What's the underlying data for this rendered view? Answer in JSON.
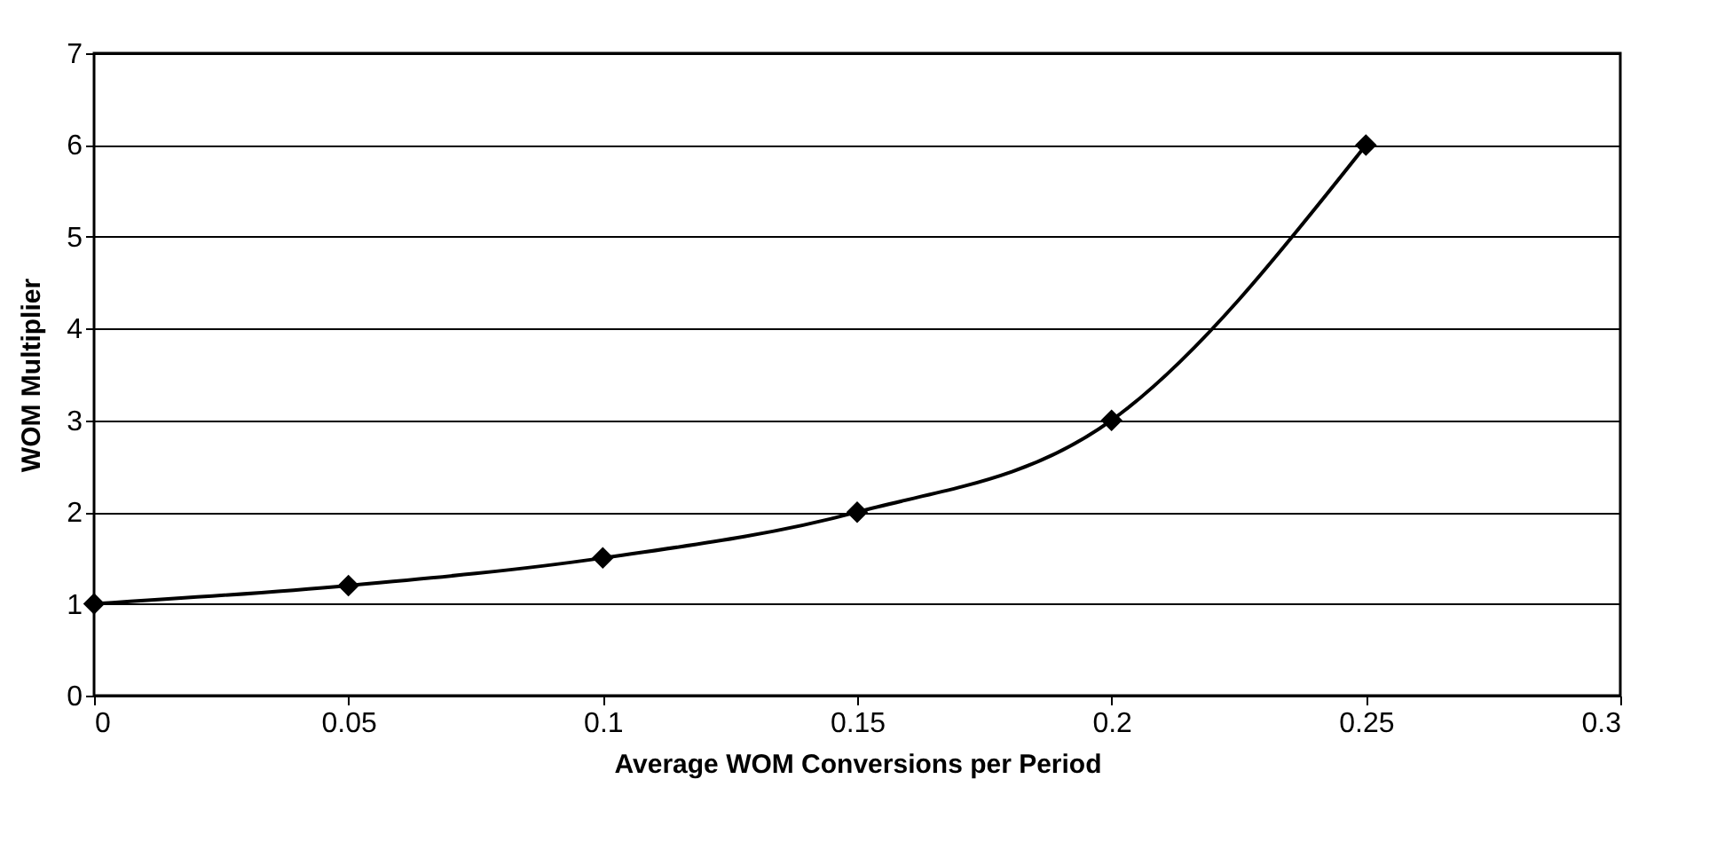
{
  "chart_data": {
    "type": "line",
    "xlabel": "Average WOM Conversions per Period",
    "ylabel": "WOM Multiplier",
    "x": [
      0,
      0.05,
      0.1,
      0.15,
      0.2,
      0.25
    ],
    "series": [
      {
        "color": "#000000",
        "values": [
          1,
          1.2,
          1.5,
          2,
          3,
          6
        ]
      }
    ],
    "xlim": [
      0,
      0.3
    ],
    "xticks": [
      0,
      0.05,
      0.1,
      0.15,
      0.2,
      0.25,
      0.3
    ],
    "ylim": [
      0,
      7
    ],
    "yticks": [
      0,
      1,
      2,
      3,
      4,
      5,
      6,
      7
    ],
    "grid": "y",
    "marker": "diamond",
    "line_style": "solid"
  }
}
